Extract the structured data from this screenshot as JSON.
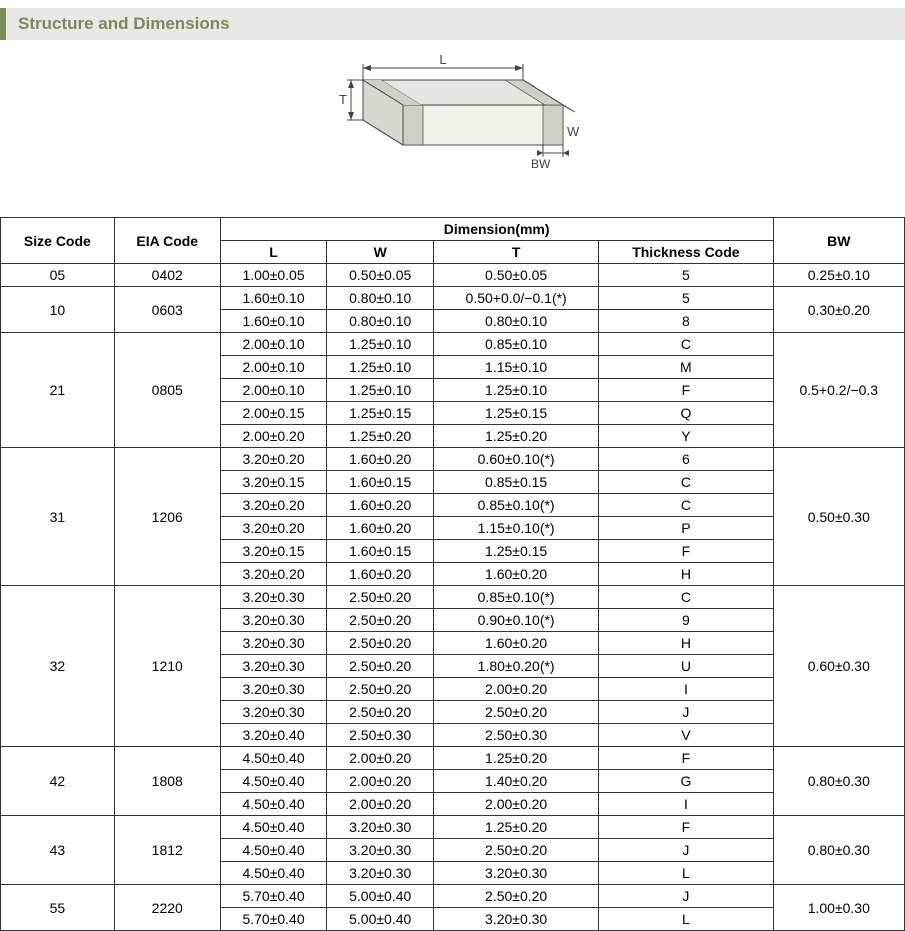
{
  "title": "Structure and Dimensions",
  "diagram": {
    "labels": {
      "L": "L",
      "W": "W",
      "T": "T",
      "BW": "BW"
    },
    "stroke": "#444444",
    "fill": "#e6e6e0",
    "text_color": "#444444"
  },
  "table": {
    "header_group": "Dimension(mm)",
    "columns": [
      "Size Code",
      "EIA Code",
      "L",
      "W",
      "T",
      "Thickness Code",
      "BW"
    ],
    "groups": [
      {
        "size": "05",
        "eia": "0402",
        "bw": "0.25±0.10",
        "rows": [
          {
            "L": "1.00±0.05",
            "W": "0.50±0.05",
            "T": "0.50±0.05",
            "TC": "5"
          }
        ]
      },
      {
        "size": "10",
        "eia": "0603",
        "bw": "0.30±0.20",
        "rows": [
          {
            "L": "1.60±0.10",
            "W": "0.80±0.10",
            "T": "0.50+0.0/−0.1(*)",
            "TC": "5"
          },
          {
            "L": "1.60±0.10",
            "W": "0.80±0.10",
            "T": "0.80±0.10",
            "TC": "8"
          }
        ]
      },
      {
        "size": "21",
        "eia": "0805",
        "bw": "0.5+0.2/−0.3",
        "rows": [
          {
            "L": "2.00±0.10",
            "W": "1.25±0.10",
            "T": "0.85±0.10",
            "TC": "C"
          },
          {
            "L": "2.00±0.10",
            "W": "1.25±0.10",
            "T": "1.15±0.10",
            "TC": "M"
          },
          {
            "L": "2.00±0.10",
            "W": "1.25±0.10",
            "T": "1.25±0.10",
            "TC": "F"
          },
          {
            "L": "2.00±0.15",
            "W": "1.25±0.15",
            "T": "1.25±0.15",
            "TC": "Q"
          },
          {
            "L": "2.00±0.20",
            "W": "1.25±0.20",
            "T": "1.25±0.20",
            "TC": "Y"
          }
        ]
      },
      {
        "size": "31",
        "eia": "1206",
        "bw": "0.50±0.30",
        "rows": [
          {
            "L": "3.20±0.20",
            "W": "1.60±0.20",
            "T": "0.60±0.10(*)",
            "TC": "6"
          },
          {
            "L": "3.20±0.15",
            "W": "1.60±0.15",
            "T": "0.85±0.15",
            "TC": "C"
          },
          {
            "L": "3.20±0.20",
            "W": "1.60±0.20",
            "T": "0.85±0.10(*)",
            "TC": "C"
          },
          {
            "L": "3.20±0.20",
            "W": "1.60±0.20",
            "T": "1.15±0.10(*)",
            "TC": "P"
          },
          {
            "L": "3.20±0.15",
            "W": "1.60±0.15",
            "T": "1.25±0.15",
            "TC": "F"
          },
          {
            "L": "3.20±0.20",
            "W": "1.60±0.20",
            "T": "1.60±0.20",
            "TC": "H"
          }
        ]
      },
      {
        "size": "32",
        "eia": "1210",
        "bw": "0.60±0.30",
        "rows": [
          {
            "L": "3.20±0.30",
            "W": "2.50±0.20",
            "T": "0.85±0.10(*)",
            "TC": "C"
          },
          {
            "L": "3.20±0.30",
            "W": "2.50±0.20",
            "T": "0.90±0.10(*)",
            "TC": "9"
          },
          {
            "L": "3.20±0.30",
            "W": "2.50±0.20",
            "T": "1.60±0.20",
            "TC": "H"
          },
          {
            "L": "3.20±0.30",
            "W": "2.50±0.20",
            "T": "1.80±0.20(*)",
            "TC": "U"
          },
          {
            "L": "3.20±0.30",
            "W": "2.50±0.20",
            "T": "2.00±0.20",
            "TC": "I"
          },
          {
            "L": "3.20±0.30",
            "W": "2.50±0.20",
            "T": "2.50±0.20",
            "TC": "J"
          },
          {
            "L": "3.20±0.40",
            "W": "2.50±0.30",
            "T": "2.50±0.30",
            "TC": "V"
          }
        ]
      },
      {
        "size": "42",
        "eia": "1808",
        "bw": "0.80±0.30",
        "rows": [
          {
            "L": "4.50±0.40",
            "W": "2.00±0.20",
            "T": "1.25±0.20",
            "TC": "F"
          },
          {
            "L": "4.50±0.40",
            "W": "2.00±0.20",
            "T": "1.40±0.20",
            "TC": "G"
          },
          {
            "L": "4.50±0.40",
            "W": "2.00±0.20",
            "T": "2.00±0.20",
            "TC": "I"
          }
        ]
      },
      {
        "size": "43",
        "eia": "1812",
        "bw": "0.80±0.30",
        "rows": [
          {
            "L": "4.50±0.40",
            "W": "3.20±0.30",
            "T": "1.25±0.20",
            "TC": "F"
          },
          {
            "L": "4.50±0.40",
            "W": "3.20±0.30",
            "T": "2.50±0.20",
            "TC": "J"
          },
          {
            "L": "4.50±0.40",
            "W": "3.20±0.30",
            "T": "3.20±0.30",
            "TC": "L"
          }
        ]
      },
      {
        "size": "55",
        "eia": "2220",
        "bw": "1.00±0.30",
        "rows": [
          {
            "L": "5.70±0.40",
            "W": "5.00±0.40",
            "T": "2.50±0.20",
            "TC": "J"
          },
          {
            "L": "5.70±0.40",
            "W": "5.00±0.40",
            "T": "3.20±0.30",
            "TC": "L"
          }
        ]
      }
    ]
  },
  "styling": {
    "title_bg": "#e8e7e3",
    "title_border": "#7a8a5a",
    "title_color": "#7a8a5a",
    "table_border": "#333333",
    "font_size_table": 14,
    "font_size_title": 17
  }
}
